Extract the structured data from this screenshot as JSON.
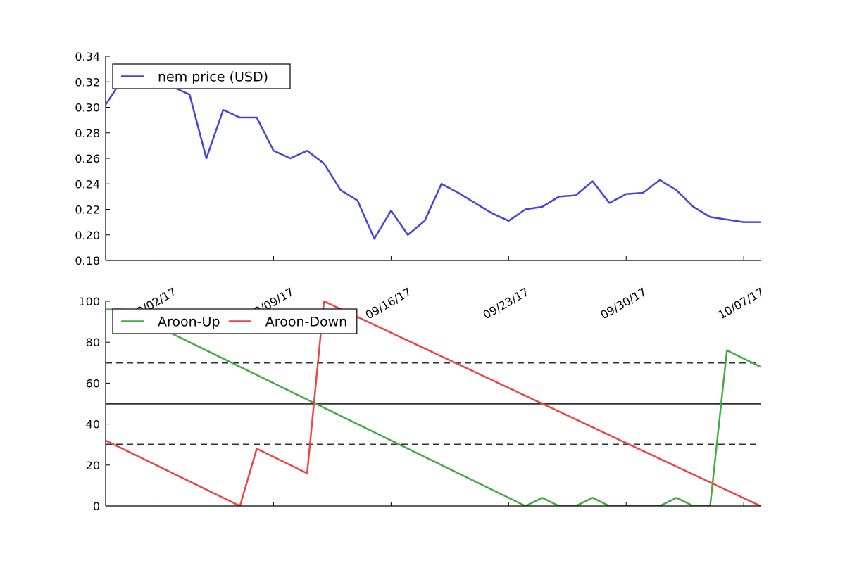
{
  "chart_data": [
    {
      "type": "line",
      "title": "",
      "xlabel": "",
      "ylabel": "",
      "ylim": [
        0.18,
        0.34
      ],
      "y_ticks": [
        "0.18",
        "0.20",
        "0.22",
        "0.24",
        "0.26",
        "0.28",
        "0.30",
        "0.32",
        "0.34"
      ],
      "x_ticks": [
        "09/02/17",
        "09/09/17",
        "09/16/17",
        "09/23/17",
        "09/30/17",
        "10/07/17"
      ],
      "xlim": [
        "2017-08-30",
        "2017-10-08"
      ],
      "grid": false,
      "legend_position": "upper-left",
      "series": [
        {
          "name": "nem price (USD)",
          "color": "#4444dd",
          "points": [
            [
              "2017-08-30",
              0.302
            ],
            [
              "2017-08-31",
              0.322
            ],
            [
              "2017-09-01",
              0.325
            ],
            [
              "2017-09-02",
              0.322
            ],
            [
              "2017-09-03",
              0.316
            ],
            [
              "2017-09-04",
              0.31
            ],
            [
              "2017-09-05",
              0.26
            ],
            [
              "2017-09-06",
              0.298
            ],
            [
              "2017-09-07",
              0.292
            ],
            [
              "2017-09-08",
              0.292
            ],
            [
              "2017-09-09",
              0.266
            ],
            [
              "2017-09-10",
              0.26
            ],
            [
              "2017-09-11",
              0.266
            ],
            [
              "2017-09-12",
              0.256
            ],
            [
              "2017-09-13",
              0.235
            ],
            [
              "2017-09-14",
              0.227
            ],
            [
              "2017-09-15",
              0.197
            ],
            [
              "2017-09-16",
              0.219
            ],
            [
              "2017-09-17",
              0.2
            ],
            [
              "2017-09-18",
              0.211
            ],
            [
              "2017-09-19",
              0.24
            ],
            [
              "2017-09-20",
              0.233
            ],
            [
              "2017-09-21",
              0.225
            ],
            [
              "2017-09-22",
              0.217
            ],
            [
              "2017-09-23",
              0.211
            ],
            [
              "2017-09-24",
              0.22
            ],
            [
              "2017-09-25",
              0.222
            ],
            [
              "2017-09-26",
              0.23
            ],
            [
              "2017-09-27",
              0.231
            ],
            [
              "2017-09-28",
              0.242
            ],
            [
              "2017-09-29",
              0.225
            ],
            [
              "2017-09-30",
              0.232
            ],
            [
              "2017-10-01",
              0.233
            ],
            [
              "2017-10-02",
              0.243
            ],
            [
              "2017-10-03",
              0.235
            ],
            [
              "2017-10-04",
              0.222
            ],
            [
              "2017-10-05",
              0.214
            ],
            [
              "2017-10-06",
              0.212
            ],
            [
              "2017-10-07",
              0.21
            ],
            [
              "2017-10-08",
              0.21
            ],
            [
              "2017-10-09",
              0.203
            ]
          ]
        }
      ]
    },
    {
      "type": "line",
      "title": "",
      "xlabel": "",
      "ylabel": "",
      "ylim": [
        0,
        100
      ],
      "y_ticks": [
        "0",
        "20",
        "40",
        "60",
        "80",
        "100"
      ],
      "xlim": [
        "2017-08-30",
        "2017-10-08"
      ],
      "grid": false,
      "legend_position": "upper-left",
      "reference_lines": [
        {
          "y": 70,
          "style": "dashed",
          "color": "#333333"
        },
        {
          "y": 50,
          "style": "solid",
          "color": "#333333"
        },
        {
          "y": 30,
          "style": "dashed",
          "color": "#333333"
        }
      ],
      "series": [
        {
          "name": "Aroon-Up",
          "color": "#44aa44",
          "points": [
            [
              "2017-08-30",
              96
            ],
            [
              "2017-08-31",
              96
            ],
            [
              "2017-09-01",
              92
            ],
            [
              "2017-09-24",
              0
            ],
            [
              "2017-09-25",
              4
            ],
            [
              "2017-09-26",
              0
            ],
            [
              "2017-09-27",
              0
            ],
            [
              "2017-09-28",
              4
            ],
            [
              "2017-09-29",
              0
            ],
            [
              "2017-10-02",
              0
            ],
            [
              "2017-10-03",
              4
            ],
            [
              "2017-10-04",
              0
            ],
            [
              "2017-10-05",
              0
            ],
            [
              "2017-10-06",
              76
            ],
            [
              "2017-10-08",
              68
            ]
          ]
        },
        {
          "name": "Aroon-Down",
          "color": "#ee4444",
          "points": [
            [
              "2017-08-30",
              32
            ],
            [
              "2017-09-07",
              0
            ],
            [
              "2017-09-08",
              28
            ],
            [
              "2017-09-11",
              16
            ],
            [
              "2017-09-12",
              100
            ],
            [
              "2017-10-08",
              0
            ]
          ]
        }
      ]
    }
  ]
}
